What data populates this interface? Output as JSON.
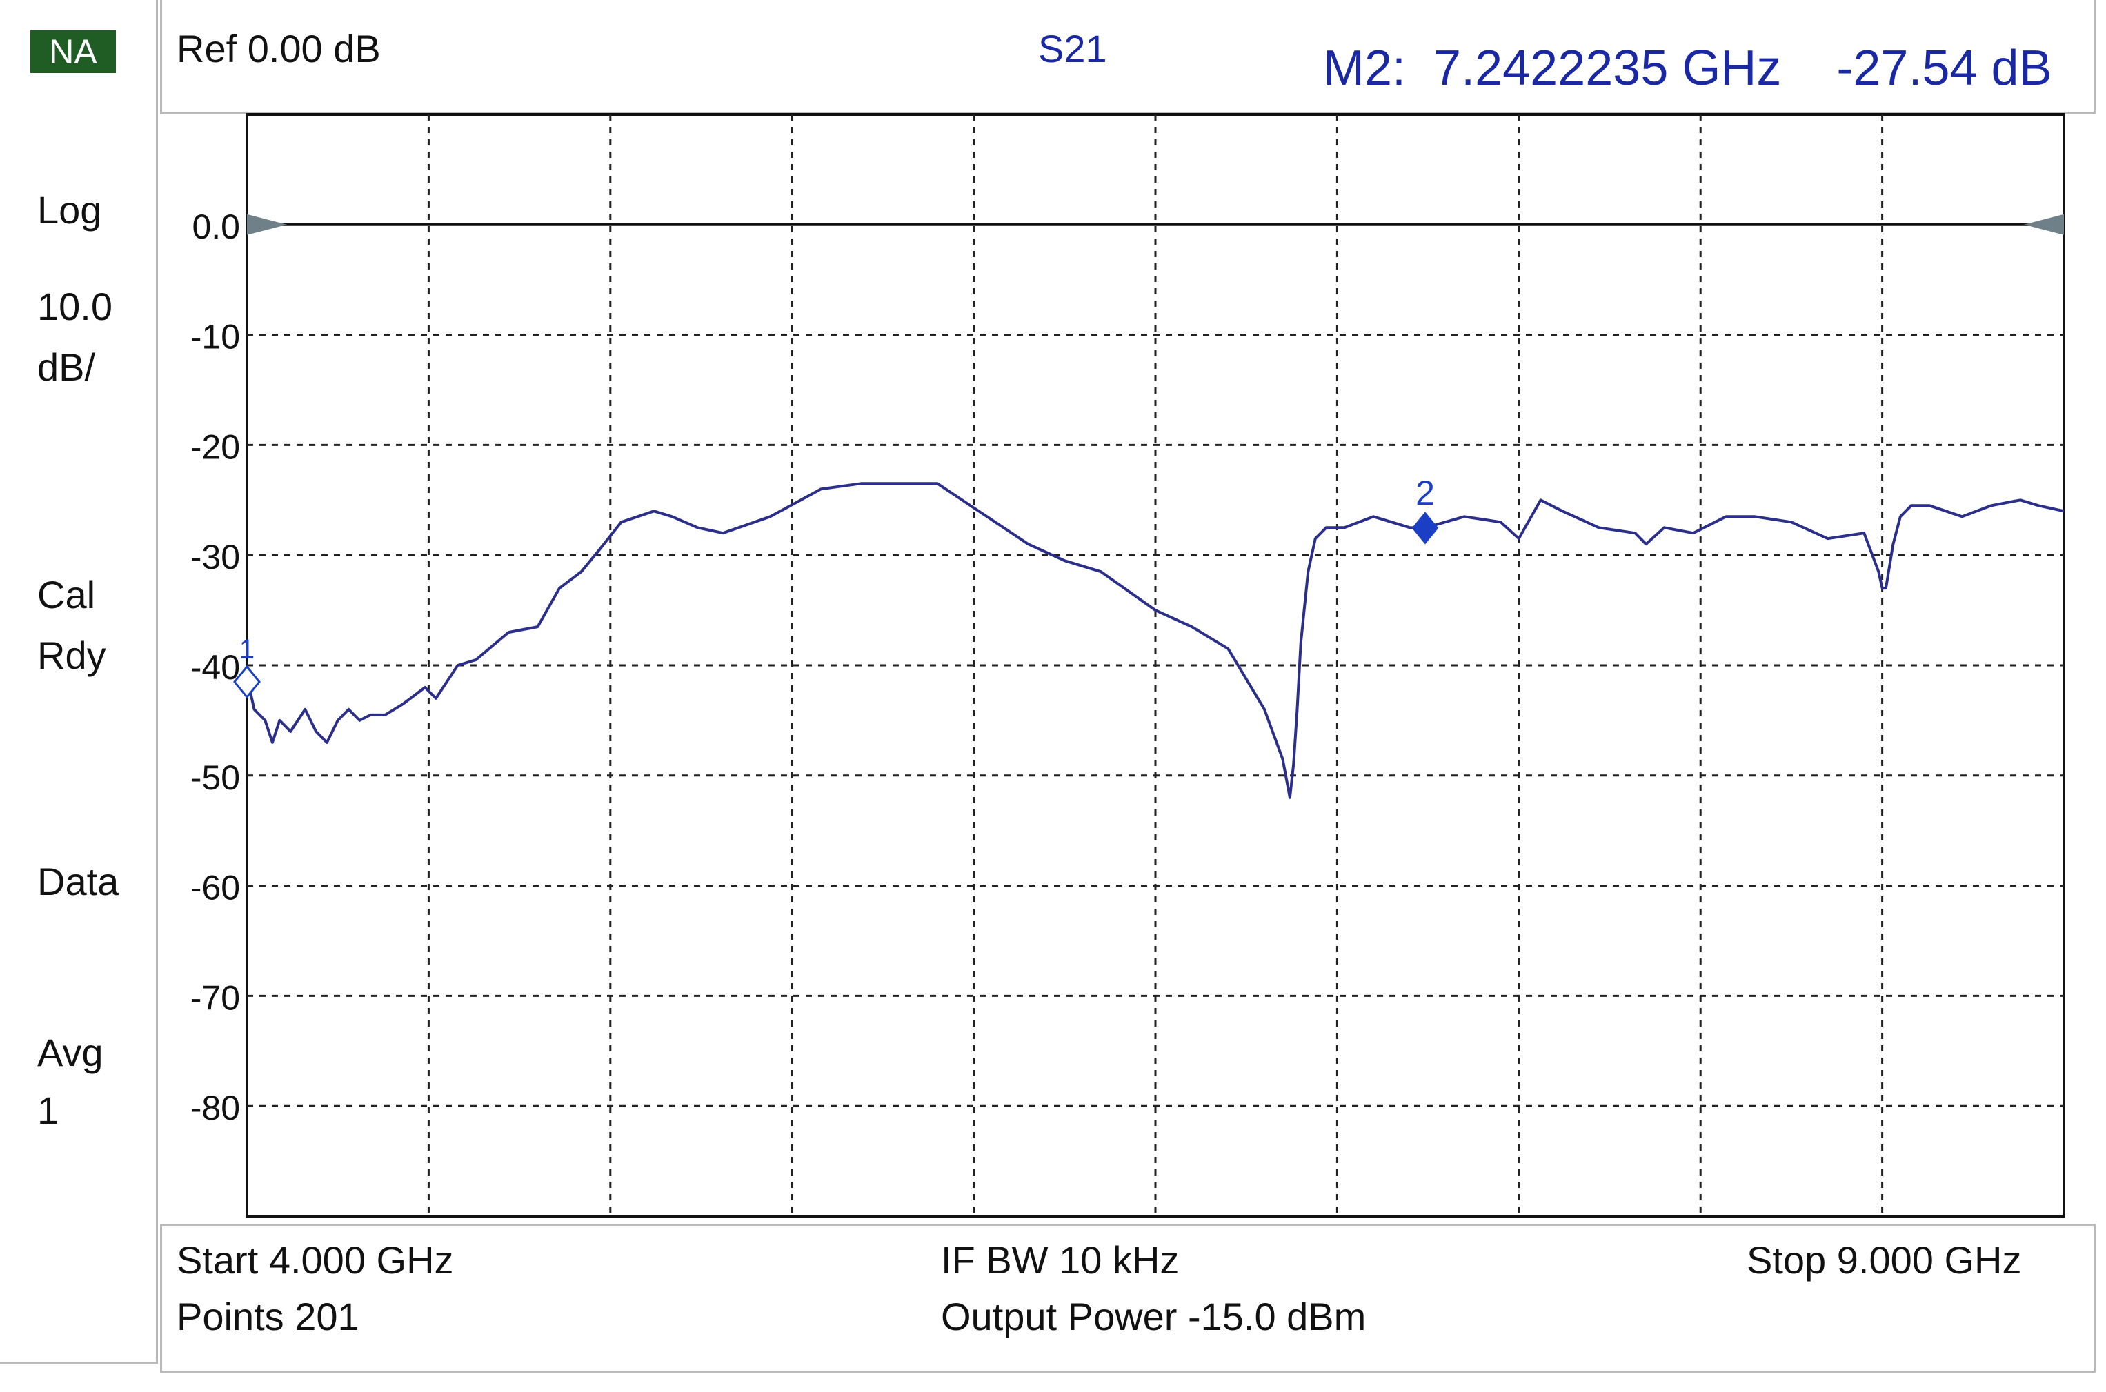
{
  "instrument": {
    "mode_badge": "NA",
    "side_labels": {
      "format": "Log",
      "scale_value": "10.0",
      "scale_unit": "dB/",
      "cal_1": "Cal",
      "cal_2": "Rdy",
      "data": "Data",
      "avg_1": "Avg",
      "avg_2": "1"
    },
    "header": {
      "ref": "Ref 0.00 dB",
      "trace": "S21",
      "marker_readout": "M2:  7.2422235 GHz    -27.54 dB"
    },
    "footer": {
      "start": "Start 4.000 GHz",
      "points": "Points 201",
      "ifbw": "IF BW 10 kHz",
      "power": "Output Power -15.0 dBm",
      "stop": "Stop 9.000 GHz"
    }
  },
  "chart_data": {
    "type": "line",
    "title": "S21",
    "xlim": [
      4.0,
      9.0
    ],
    "ylim": [
      -90,
      10
    ],
    "yticks": [
      0,
      -10,
      -20,
      -30,
      -40,
      -50,
      -60,
      -70,
      -80
    ],
    "ytick_labels": [
      "0.0",
      "-10",
      "-20",
      "-30",
      "-40",
      "-50",
      "-60",
      "-70",
      "-80"
    ],
    "x_divisions": 10,
    "grid": true,
    "reference_level": 0.0,
    "colors": {
      "trace": "#2b2f8a",
      "marker": "#1a3fc4",
      "grid": "#222222"
    },
    "series": [
      {
        "x": [
          4.0,
          4.02,
          4.05,
          4.07,
          4.09,
          4.12,
          4.16,
          4.19,
          4.22,
          4.25,
          4.28,
          4.31,
          4.34,
          4.38,
          4.43,
          4.49,
          4.52,
          4.56,
          4.58,
          4.63,
          4.72,
          4.8,
          4.86,
          4.92,
          4.97,
          5.03,
          5.12,
          5.17,
          5.24,
          5.31,
          5.44,
          5.58,
          5.69,
          5.9,
          6.15,
          6.25,
          6.35,
          6.5,
          6.6,
          6.7,
          6.8,
          6.85,
          6.87,
          6.88,
          6.89,
          6.9,
          6.92,
          6.94,
          6.97,
          7.02,
          7.1,
          7.2,
          7.24,
          7.35,
          7.45,
          7.5,
          7.56,
          7.62,
          7.72,
          7.82,
          7.85,
          7.9,
          7.98,
          8.07,
          8.15,
          8.25,
          8.35,
          8.45,
          8.49,
          8.5,
          8.51,
          8.53,
          8.55,
          8.58,
          8.63,
          8.72,
          8.8,
          8.88,
          8.93,
          9.0
        ],
        "y": [
          -41,
          -44,
          -45,
          -47,
          -45,
          -46,
          -44,
          -46,
          -47,
          -45,
          -44,
          -45,
          -44.5,
          -44.5,
          -43.5,
          -42,
          -43,
          -41,
          -40,
          -39.5,
          -37,
          -36.5,
          -33,
          -31.5,
          -29.5,
          -27,
          -26,
          -26.5,
          -27.5,
          -28,
          -26.5,
          -24,
          -23.5,
          -23.5,
          -29,
          -30.5,
          -31.5,
          -35,
          -36.5,
          -38.5,
          -44,
          -48.5,
          -52,
          -49,
          -44,
          -38,
          -31.5,
          -28.5,
          -27.5,
          -27.5,
          -26.5,
          -27.5,
          -27.54,
          -26.5,
          -27,
          -28.5,
          -25,
          -26,
          -27.5,
          -28,
          -29,
          -27.5,
          -28,
          -26.5,
          -26.5,
          -27,
          -28.5,
          -28,
          -31.5,
          -33,
          -33,
          -29,
          -26.5,
          -25.5,
          -25.5,
          -26.5,
          -25.5,
          -25,
          -25.5,
          -26
        ]
      }
    ],
    "markers": [
      {
        "label": "1",
        "x": 4.0,
        "y": -41.5,
        "active": false
      },
      {
        "label": "2",
        "x": 7.2422235,
        "y": -27.54,
        "active": true
      }
    ]
  }
}
